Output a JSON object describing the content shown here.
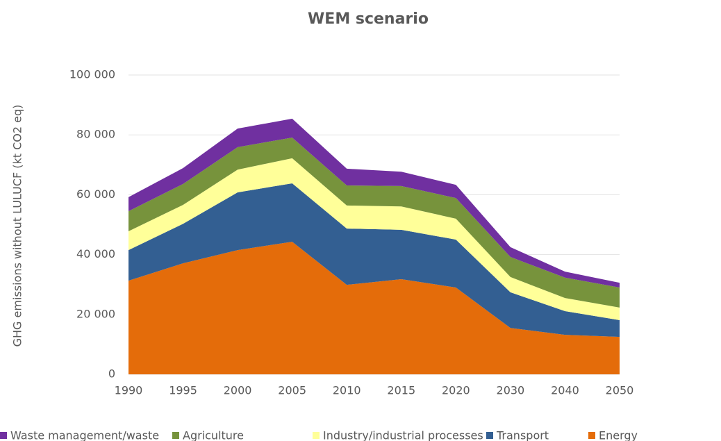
{
  "chart_data": {
    "type": "stacked_area",
    "title": "WEM scenario",
    "y_label": "GHG emissions without LULUCF (kt CO2 eq)",
    "categories": [
      "1990",
      "1995",
      "2000",
      "2005",
      "2010",
      "2015",
      "2020",
      "2030",
      "2040",
      "2050"
    ],
    "series": [
      {
        "name": "Energy",
        "color": "#e46c0a",
        "values": [
          31300,
          37100,
          41500,
          44300,
          29900,
          31800,
          29000,
          15500,
          13200,
          12500
        ]
      },
      {
        "name": "Transport",
        "color": "#335f92",
        "values": [
          10200,
          13200,
          19300,
          19500,
          18800,
          16500,
          16000,
          11900,
          7900,
          5600
        ]
      },
      {
        "name": "Industry/industrial processes",
        "color": "#ffff99",
        "values": [
          6300,
          6300,
          7600,
          8400,
          7700,
          7800,
          7000,
          5100,
          4400,
          4200
        ]
      },
      {
        "name": "Agriculture",
        "color": "#77933c",
        "values": [
          6700,
          7000,
          7500,
          6900,
          6700,
          6800,
          6900,
          6700,
          6800,
          6700
        ]
      },
      {
        "name": "Waste management/waste",
        "color": "#7030a0",
        "values": [
          4700,
          5300,
          6200,
          6300,
          5600,
          4800,
          4400,
          3300,
          2000,
          1600
        ]
      }
    ],
    "ylim": [
      0,
      100000
    ],
    "yticks": [
      0,
      {
        "value": 20000,
        "label": "20 000"
      },
      {
        "value": 40000,
        "label": "40 000"
      },
      {
        "value": 60000,
        "label": "60 000"
      },
      {
        "value": 80000,
        "label": "80 000"
      },
      {
        "value": 100000,
        "label": "100 000"
      }
    ],
    "grid": true,
    "legend": "bottom"
  }
}
